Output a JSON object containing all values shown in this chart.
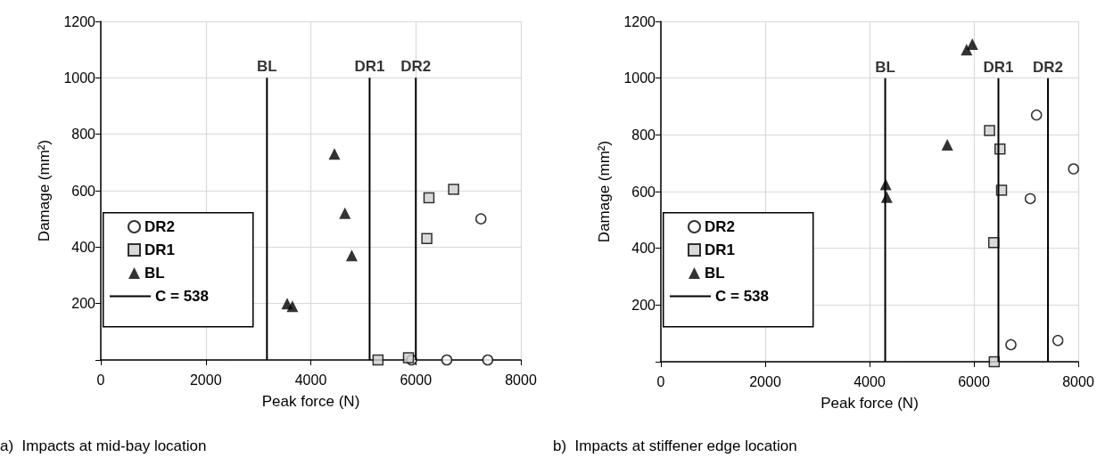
{
  "chart_data": [
    {
      "type": "scatter",
      "xlabel": "Peak force (N)",
      "ylabel": "Damage (mm²)",
      "annotations": [
        {
          "text": "BL",
          "x": 3165,
          "y": 1000
        },
        {
          "text": "DR1",
          "x": 5120,
          "y": 1000
        },
        {
          "text": "DR2",
          "x": 6000,
          "y": 1000
        },
        "a)  Impacts at mid-bay location"
      ],
      "xlim": [
        0,
        8000
      ],
      "xticks": [
        0,
        2000,
        4000,
        6000,
        8000
      ],
      "ylim": [
        0,
        1200
      ],
      "yticks": [
        {
          "value": 0,
          "label": null
        },
        200,
        400,
        600,
        800,
        1000,
        1200
      ],
      "grid": true,
      "legend": "bottom left",
      "series": [
        {
          "name": "DR2",
          "color": "#ffffff",
          "marker": "circle",
          "x": [
            7240,
            5920,
            6590,
            7370
          ],
          "values": [
            500,
            0,
            0,
            0
          ]
        },
        {
          "name": "DR1",
          "color": "#d0d0d0",
          "marker": "square",
          "x": [
            6250,
            6720,
            6210,
            5280,
            5860
          ],
          "values": [
            575,
            605,
            430,
            0,
            8
          ]
        },
        {
          "name": "BL",
          "color": "#000000",
          "marker": "triangle",
          "x": [
            3550,
            3650,
            4450,
            4650,
            4780
          ],
          "values": [
            200,
            190,
            730,
            520,
            370
          ]
        },
        {
          "name": "C = 538",
          "type": "line",
          "color": "#000000",
          "marker": "none",
          "x": [
            3165,
            3165,
            null,
            5120,
            5120,
            null,
            6000,
            6000
          ],
          "values": [
            0,
            1000,
            null,
            0,
            1000,
            null,
            0,
            1000
          ]
        }
      ]
    },
    {
      "type": "scatter",
      "xlabel": "Peak force (N)",
      "ylabel": "Damage (mm²)",
      "annotations": [
        {
          "text": "BL",
          "x": 4300,
          "y": 1000
        },
        {
          "text": "DR1",
          "x": 6470,
          "y": 1000
        },
        {
          "text": "DR2",
          "x": 7420,
          "y": 1000
        },
        "b)  Impacts at stiffener edge location"
      ],
      "xlim": [
        0,
        8000
      ],
      "xticks": [
        0,
        2000,
        4000,
        6000,
        8000
      ],
      "ylim": [
        0,
        1200
      ],
      "yticks": [
        {
          "value": 0,
          "label": null
        },
        200,
        400,
        600,
        800,
        1000,
        1200
      ],
      "grid": true,
      "legend": "bottom left",
      "series": [
        {
          "name": "DR2",
          "color": "#ffffff",
          "marker": "circle",
          "x": [
            7200,
            7080,
            7910,
            6710,
            7610
          ],
          "values": [
            870,
            575,
            680,
            60,
            75
          ]
        },
        {
          "name": "DR1",
          "color": "#d0d0d0",
          "marker": "square",
          "x": [
            6300,
            6500,
            6530,
            6380,
            6390
          ],
          "values": [
            815,
            750,
            605,
            420,
            0
          ]
        },
        {
          "name": "BL",
          "color": "#000000",
          "marker": "triangle",
          "x": [
            5970,
            5860,
            5490,
            4310,
            4330
          ],
          "values": [
            1120,
            1100,
            765,
            625,
            580
          ]
        },
        {
          "name": "C = 538",
          "type": "line",
          "color": "#000000",
          "marker": "none",
          "x": [
            4300,
            4300,
            null,
            6470,
            6470,
            null,
            7420,
            7420
          ],
          "values": [
            0,
            1000,
            null,
            0,
            1000,
            null,
            0,
            1000
          ]
        }
      ]
    }
  ]
}
